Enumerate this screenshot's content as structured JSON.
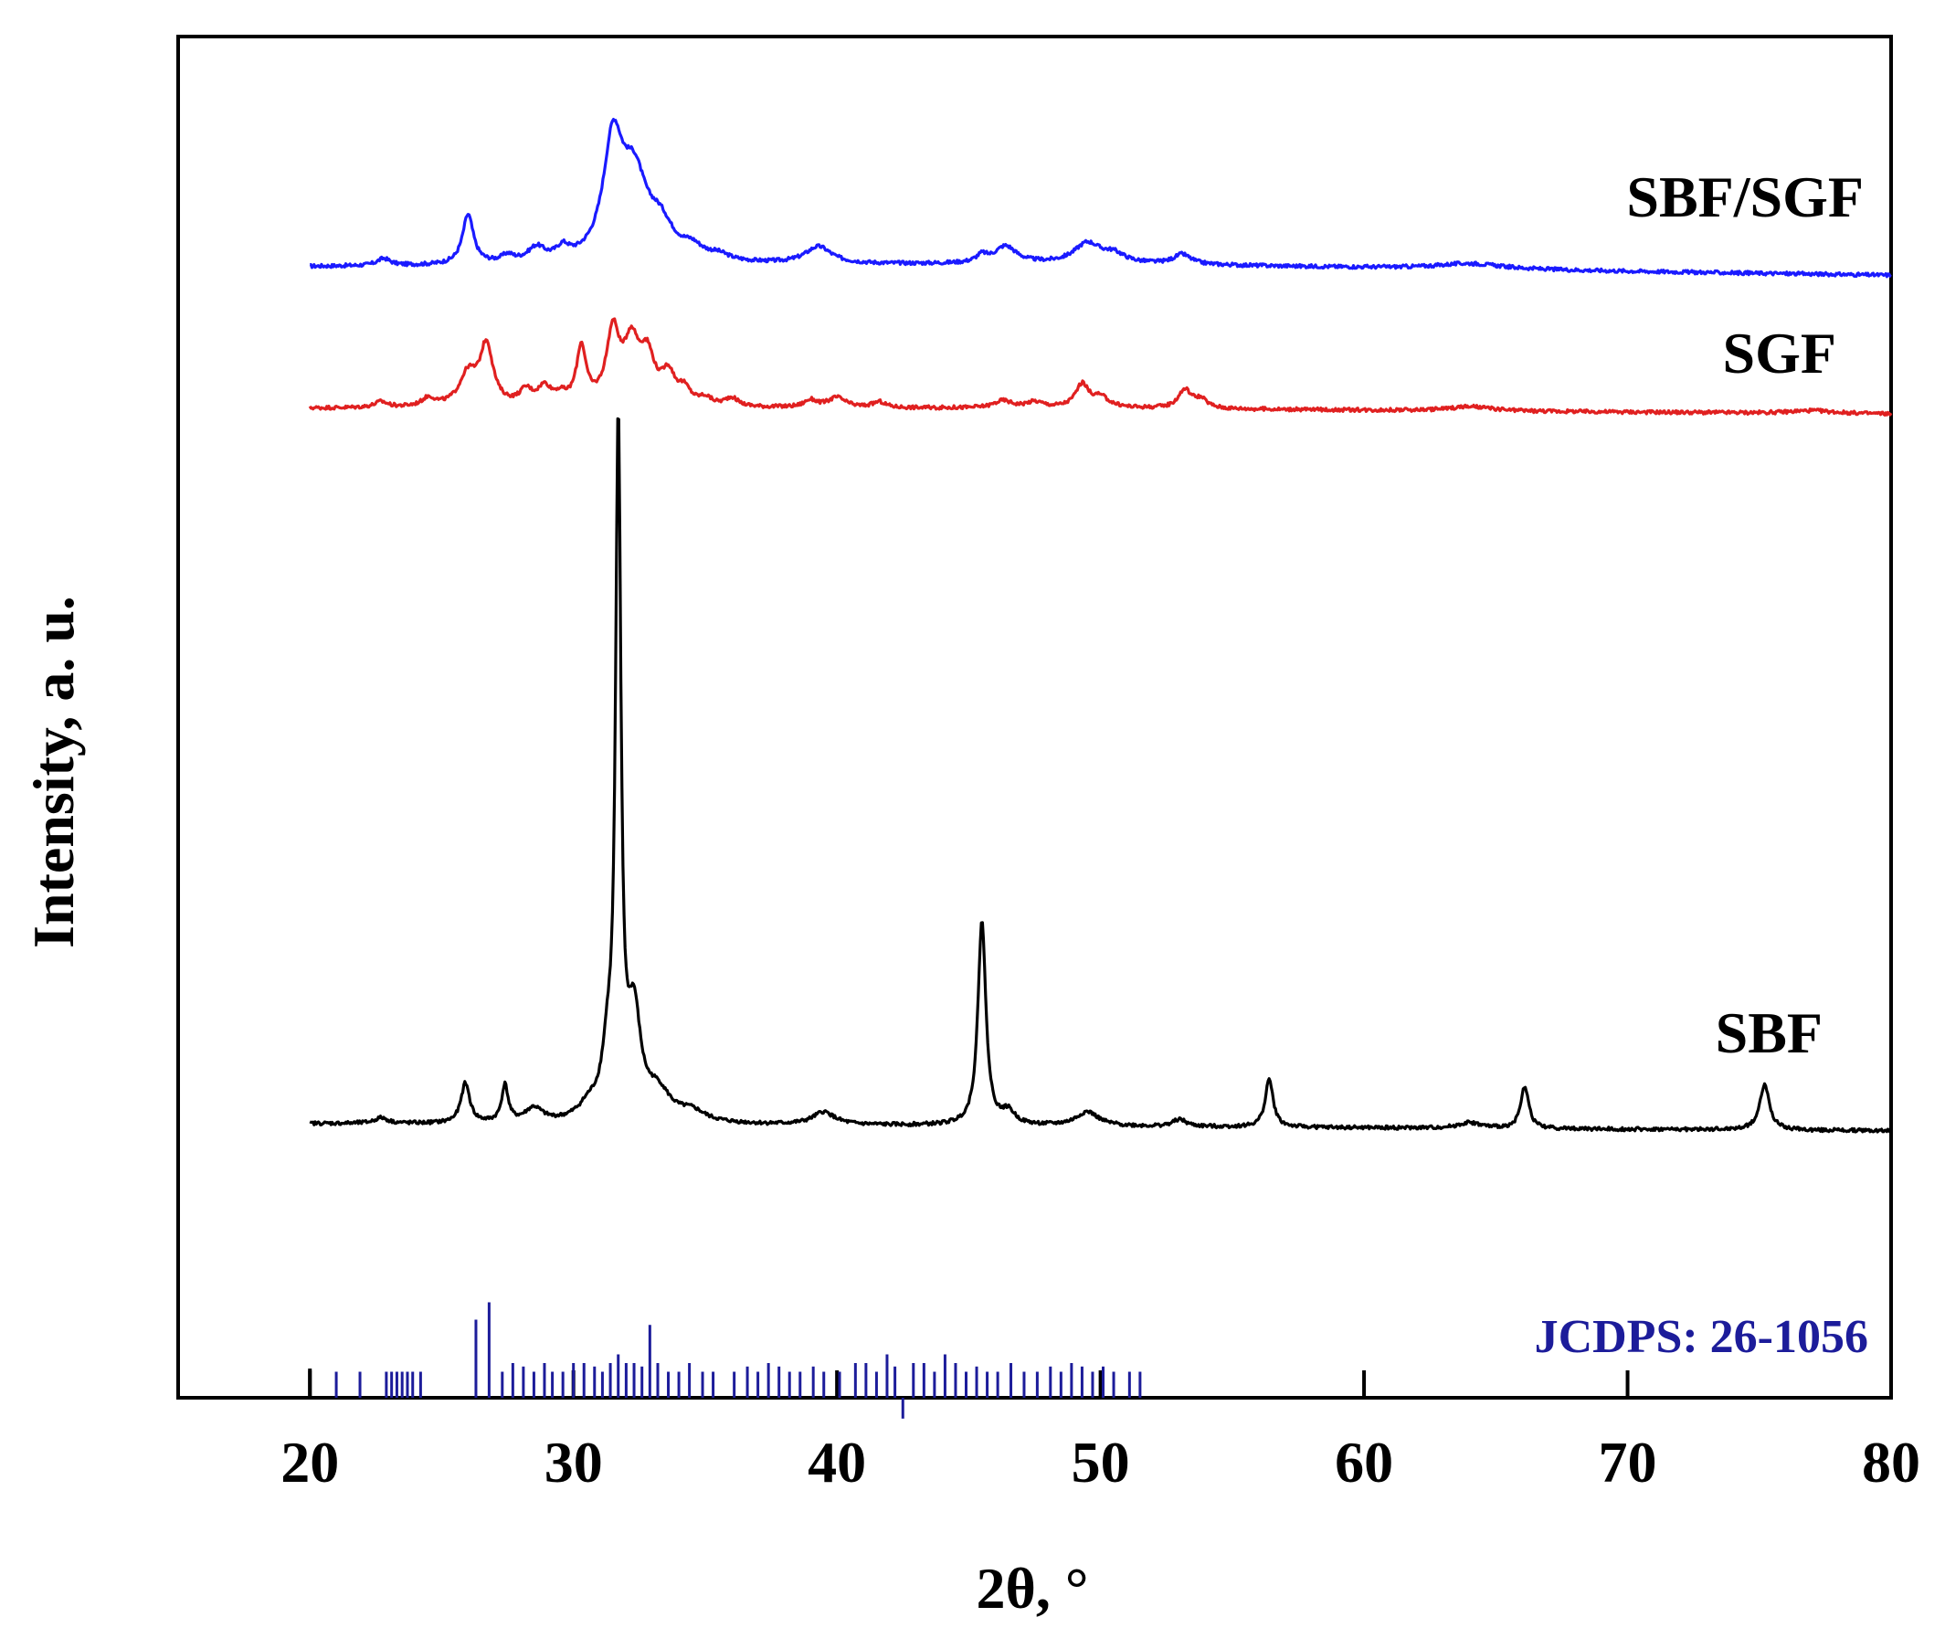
{
  "chart_data": {
    "type": "line",
    "title": "",
    "xlabel": "2θ, °",
    "ylabel": "Intensity, a. u.",
    "xlim": [
      15,
      80
    ],
    "x_ticks": [
      20,
      30,
      40,
      50,
      60,
      70,
      80
    ],
    "x_tick_labels": [
      "20",
      "30",
      "40",
      "50",
      "60",
      "70",
      "80"
    ],
    "y_ticks": "none",
    "grid": false,
    "legend": "labels printed beside each curve, right side",
    "colors": {
      "SBF/SGF": "#1a1aff",
      "SGF": "#e02020",
      "SBF": "#000000",
      "reference": "#1c1c9a"
    },
    "series": [
      {
        "name": "SBF/SGF",
        "color": "#1a1aff",
        "baseline": [
          [
            20,
            0.0
          ],
          [
            50,
            0.02
          ],
          [
            80,
            -0.06
          ]
        ],
        "peaks": [
          [
            22.8,
            0.05,
            0.3
          ],
          [
            26.0,
            0.35,
            0.25
          ],
          [
            27.5,
            0.05,
            0.3
          ],
          [
            28.6,
            0.1,
            0.4
          ],
          [
            29.6,
            0.08,
            0.3
          ],
          [
            31.5,
            0.8,
            0.45
          ],
          [
            32.3,
            0.55,
            0.6
          ],
          [
            33.3,
            0.22,
            0.6
          ],
          [
            34.5,
            0.08,
            0.5
          ],
          [
            35.5,
            0.04,
            0.5
          ],
          [
            39.3,
            0.12,
            0.6
          ],
          [
            45.5,
            0.05,
            0.25
          ],
          [
            46.4,
            0.12,
            0.5
          ],
          [
            49.5,
            0.14,
            0.6
          ],
          [
            50.5,
            0.06,
            0.5
          ],
          [
            53.1,
            0.07,
            0.4
          ],
          [
            64.0,
            0.04,
            1.5
          ]
        ]
      },
      {
        "name": "SGF",
        "color": "#e02020",
        "baseline": [
          [
            20,
            0.0
          ],
          [
            50,
            0.0
          ],
          [
            80,
            -0.04
          ]
        ],
        "peaks": [
          [
            22.7,
            0.04,
            0.3
          ],
          [
            24.5,
            0.06,
            0.3
          ],
          [
            26.0,
            0.22,
            0.4
          ],
          [
            26.7,
            0.42,
            0.3
          ],
          [
            28.2,
            0.1,
            0.3
          ],
          [
            28.9,
            0.12,
            0.3
          ],
          [
            29.5,
            0.06,
            0.3
          ],
          [
            30.3,
            0.4,
            0.22
          ],
          [
            31.5,
            0.5,
            0.3
          ],
          [
            32.2,
            0.4,
            0.35
          ],
          [
            32.8,
            0.32,
            0.35
          ],
          [
            33.6,
            0.2,
            0.3
          ],
          [
            34.2,
            0.1,
            0.3
          ],
          [
            35.0,
            0.05,
            0.3
          ],
          [
            36.0,
            0.06,
            0.3
          ],
          [
            39.0,
            0.05,
            0.3
          ],
          [
            40.0,
            0.07,
            0.4
          ],
          [
            41.6,
            0.04,
            0.3
          ],
          [
            46.3,
            0.05,
            0.4
          ],
          [
            47.5,
            0.04,
            0.4
          ],
          [
            49.3,
            0.16,
            0.3
          ],
          [
            50.0,
            0.07,
            0.4
          ],
          [
            53.2,
            0.13,
            0.3
          ],
          [
            53.8,
            0.06,
            0.3
          ],
          [
            64.0,
            0.03,
            1.0
          ],
          [
            77.0,
            0.02,
            1.0
          ]
        ]
      },
      {
        "name": "SBF",
        "color": "#000000",
        "baseline": [
          [
            20,
            0.0
          ],
          [
            50,
            -0.02
          ],
          [
            80,
            -0.05
          ]
        ],
        "peaks": [
          [
            22.7,
            0.04,
            0.3
          ],
          [
            25.9,
            0.28,
            0.2
          ],
          [
            27.4,
            0.26,
            0.15
          ],
          [
            28.5,
            0.1,
            0.4
          ],
          [
            30.6,
            0.1,
            0.5
          ],
          [
            31.3,
            0.4,
            0.25
          ],
          [
            31.7,
            4.8,
            0.12
          ],
          [
            32.3,
            0.7,
            0.3
          ],
          [
            33.2,
            0.2,
            0.6
          ],
          [
            34.5,
            0.07,
            0.6
          ],
          [
            39.5,
            0.09,
            0.5
          ],
          [
            45.5,
            1.45,
            0.18
          ],
          [
            46.5,
            0.09,
            0.3
          ],
          [
            49.5,
            0.1,
            0.5
          ],
          [
            53.0,
            0.05,
            0.3
          ],
          [
            56.4,
            0.34,
            0.18
          ],
          [
            64.0,
            0.04,
            0.5
          ],
          [
            66.1,
            0.3,
            0.18
          ],
          [
            75.2,
            0.32,
            0.22
          ]
        ]
      }
    ],
    "reference_pattern": {
      "name": "JCDPS: 26-1056",
      "color": "#1c1c9a",
      "sticks": [
        [
          21.0,
          0.15
        ],
        [
          21.9,
          0.15
        ],
        [
          22.9,
          0.15
        ],
        [
          23.1,
          0.15
        ],
        [
          23.3,
          0.15
        ],
        [
          23.5,
          0.15
        ],
        [
          23.7,
          0.15
        ],
        [
          23.9,
          0.15
        ],
        [
          24.2,
          0.15
        ],
        [
          26.3,
          0.45
        ],
        [
          26.8,
          0.55
        ],
        [
          27.3,
          0.15
        ],
        [
          27.7,
          0.2
        ],
        [
          28.1,
          0.18
        ],
        [
          28.5,
          0.15
        ],
        [
          28.9,
          0.2
        ],
        [
          29.2,
          0.15
        ],
        [
          29.6,
          0.15
        ],
        [
          30.0,
          0.2
        ],
        [
          30.4,
          0.2
        ],
        [
          30.8,
          0.18
        ],
        [
          31.1,
          0.15
        ],
        [
          31.4,
          0.2
        ],
        [
          31.7,
          0.25
        ],
        [
          32.0,
          0.2
        ],
        [
          32.3,
          0.2
        ],
        [
          32.6,
          0.18
        ],
        [
          32.9,
          0.42
        ],
        [
          33.2,
          0.2
        ],
        [
          33.6,
          0.15
        ],
        [
          34.0,
          0.15
        ],
        [
          34.4,
          0.2
        ],
        [
          34.9,
          0.15
        ],
        [
          35.3,
          0.15
        ],
        [
          36.1,
          0.15
        ],
        [
          36.6,
          0.18
        ],
        [
          37.0,
          0.15
        ],
        [
          37.4,
          0.2
        ],
        [
          37.8,
          0.18
        ],
        [
          38.2,
          0.15
        ],
        [
          38.6,
          0.15
        ],
        [
          39.1,
          0.18
        ],
        [
          39.5,
          0.15
        ],
        [
          40.1,
          0.15
        ],
        [
          40.7,
          0.2
        ],
        [
          41.1,
          0.2
        ],
        [
          41.5,
          0.15
        ],
        [
          41.9,
          0.25
        ],
        [
          42.2,
          0.18
        ],
        [
          42.5,
          -0.12
        ],
        [
          42.9,
          0.2
        ],
        [
          43.3,
          0.2
        ],
        [
          43.7,
          0.15
        ],
        [
          44.1,
          0.25
        ],
        [
          44.5,
          0.2
        ],
        [
          44.9,
          0.15
        ],
        [
          45.3,
          0.18
        ],
        [
          45.7,
          0.15
        ],
        [
          46.1,
          0.15
        ],
        [
          46.6,
          0.2
        ],
        [
          47.1,
          0.15
        ],
        [
          47.6,
          0.15
        ],
        [
          48.1,
          0.18
        ],
        [
          48.5,
          0.15
        ],
        [
          48.9,
          0.2
        ],
        [
          49.3,
          0.18
        ],
        [
          49.7,
          0.15
        ],
        [
          50.1,
          0.18
        ],
        [
          50.5,
          0.15
        ],
        [
          51.1,
          0.15
        ],
        [
          51.5,
          0.15
        ]
      ]
    }
  },
  "labels": {
    "series_sbfsgf": "SBF/SGF",
    "series_sgf": "SGF",
    "series_sbf": "SBF",
    "reference": "JCDPS: 26-1056"
  }
}
